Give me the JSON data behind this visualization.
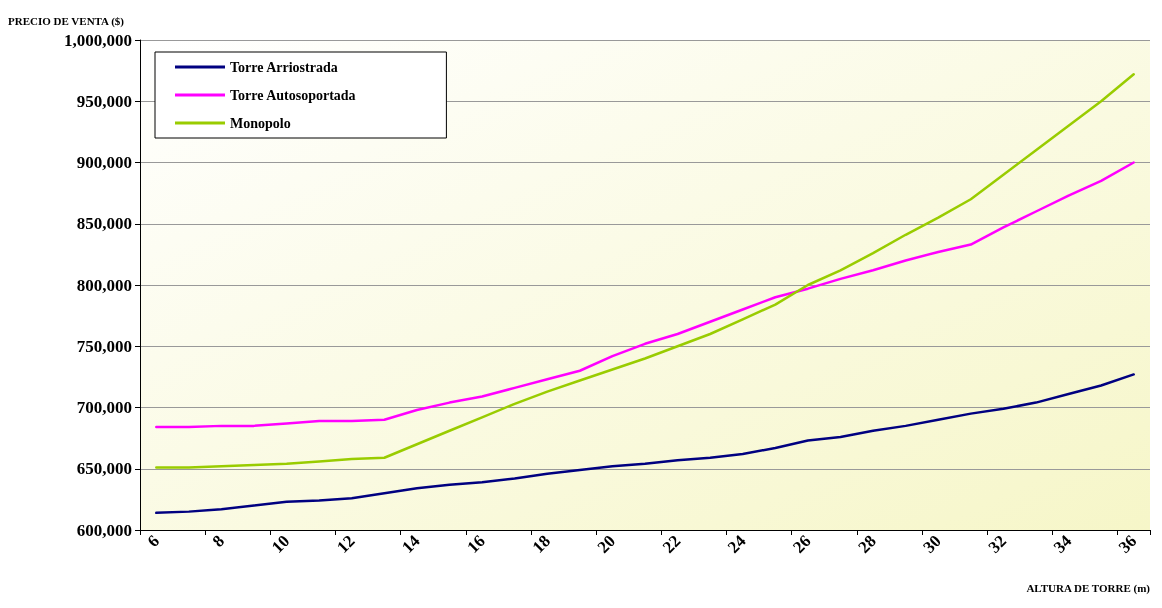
{
  "chart_data": {
    "type": "line",
    "ylabel": "PRECIO DE VENTA ($)",
    "xlabel": "ALTURA DE TORRE (m)",
    "categories": [
      "6",
      null,
      "8",
      null,
      "10",
      null,
      "12",
      null,
      "14",
      null,
      "16",
      null,
      "18",
      null,
      "20",
      null,
      "22",
      null,
      "24",
      null,
      "26",
      null,
      "28",
      null,
      "30",
      null,
      "32",
      null,
      "34",
      null,
      "36"
    ],
    "series": [
      {
        "name": "Torre Arriostrada",
        "color": "#000080",
        "values": [
          614000,
          615000,
          617000,
          620000,
          623000,
          624000,
          626000,
          630000,
          634000,
          637000,
          639000,
          642000,
          646000,
          649000,
          652000,
          654000,
          657000,
          659000,
          662000,
          667000,
          673000,
          676000,
          681000,
          685000,
          690000,
          695000,
          699000,
          704000,
          711000,
          718000,
          727000
        ]
      },
      {
        "name": "Torre Autosoportada",
        "color": "#ff00ff",
        "values": [
          684000,
          684000,
          685000,
          685000,
          687000,
          689000,
          689000,
          690000,
          698000,
          704000,
          709000,
          716000,
          723000,
          730000,
          742000,
          752000,
          760000,
          770000,
          780000,
          790000,
          797000,
          805000,
          812000,
          820000,
          827000,
          833000,
          847000,
          860000,
          873000,
          885000,
          900000
        ]
      },
      {
        "name": "Monopolo",
        "color": "#99cc00",
        "values": [
          651000,
          651000,
          652000,
          653000,
          654000,
          656000,
          658000,
          659000,
          670000,
          681000,
          692000,
          703000,
          713000,
          722000,
          731000,
          740000,
          750000,
          760000,
          772000,
          784000,
          800000,
          812000,
          826000,
          841000,
          855000,
          870000,
          890000,
          910000,
          930000,
          950000,
          972000
        ]
      }
    ],
    "ylim": [
      600000,
      1000000
    ],
    "yticks": [
      {
        "value": 600000,
        "label": "600,000"
      },
      {
        "value": 650000,
        "label": "650,000"
      },
      {
        "value": 700000,
        "label": "700,000"
      },
      {
        "value": 750000,
        "label": "750,000"
      },
      {
        "value": 800000,
        "label": "800,000"
      },
      {
        "value": 850000,
        "label": "850,000"
      },
      {
        "value": 900000,
        "label": "900,000"
      },
      {
        "value": 950000,
        "label": "950,000"
      },
      {
        "value": 1000000,
        "label": "1,000,000"
      }
    ],
    "grid": "y",
    "legend": "top left",
    "marker": "none",
    "line_style": "solid"
  }
}
